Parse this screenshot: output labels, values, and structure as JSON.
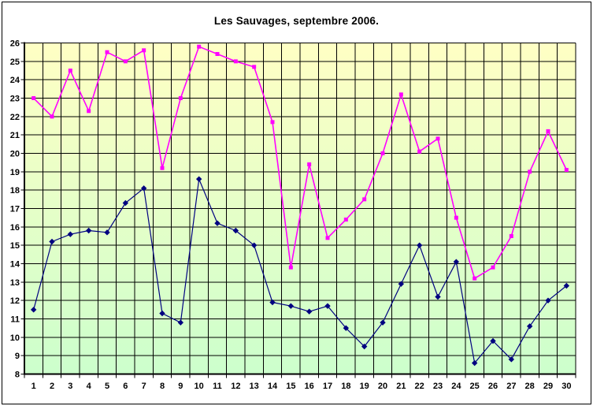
{
  "chart_data": {
    "type": "line",
    "title": "Les Sauvages, septembre 2006.",
    "categories": [
      "1",
      "2",
      "3",
      "4",
      "5",
      "6",
      "7",
      "8",
      "9",
      "10",
      "11",
      "12",
      "13",
      "14",
      "15",
      "16",
      "17",
      "18",
      "19",
      "20",
      "21",
      "22",
      "23",
      "24",
      "25",
      "26",
      "27",
      "28",
      "29",
      "30"
    ],
    "series": [
      {
        "name": "magenta-series",
        "color": "#ff00ff",
        "marker": "square",
        "line_width": 1.6,
        "values": [
          23.0,
          22.0,
          24.5,
          22.3,
          25.5,
          25.0,
          25.6,
          19.2,
          23.0,
          25.8,
          25.4,
          25.0,
          24.7,
          21.7,
          13.8,
          19.4,
          15.4,
          16.4,
          17.5,
          20.0,
          23.2,
          20.1,
          20.8,
          16.5,
          13.2,
          13.8,
          15.5,
          19.0,
          21.2,
          19.1
        ]
      },
      {
        "name": "blue-series",
        "color": "#000080",
        "marker": "diamond",
        "line_width": 1.2,
        "values": [
          11.5,
          15.2,
          15.6,
          15.8,
          15.7,
          17.3,
          18.1,
          11.3,
          10.8,
          18.6,
          16.2,
          15.8,
          15.0,
          11.9,
          11.7,
          11.4,
          11.7,
          10.5,
          9.5,
          10.8,
          12.9,
          15.0,
          12.2,
          14.1,
          8.6,
          9.8,
          8.8,
          10.6,
          12.0,
          12.8
        ]
      }
    ],
    "xlabel": "",
    "ylabel": "",
    "ylim": [
      8,
      26
    ],
    "ytick_step": 1,
    "grid": true,
    "legend_position": "none",
    "plot_background_top_color": "#ffffc4",
    "plot_background_bottom_color": "#ccffcc",
    "grid_color": "#000000",
    "axis_color": "#000000"
  }
}
